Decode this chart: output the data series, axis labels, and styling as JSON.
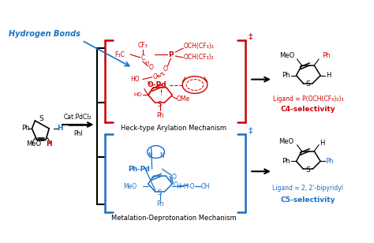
{
  "bg_color": "#ffffff",
  "fig_width": 4.74,
  "fig_height": 3.08,
  "dpi": 100,
  "color_red": "#cc0000",
  "color_blue": "#1a6fc4",
  "color_black": "#000000",
  "hydrogen_bonds_text": "Hydrogen Bonds",
  "arrow_label1": "Cat.PdCl₂",
  "arrow_label2": "PhI",
  "top_mechanism": "Heck-type Arylation Mechanism",
  "bottom_mechanism": "Metalation-Deprotonation Mechanism",
  "top_ligand": "Ligand = P(OCH(CF₃)₂)₃",
  "top_selectivity": "C4-selectivity",
  "bottom_ligand": "Ligand = 2, 2’-bipyridyl",
  "bottom_selectivity": "C5-selectivity"
}
